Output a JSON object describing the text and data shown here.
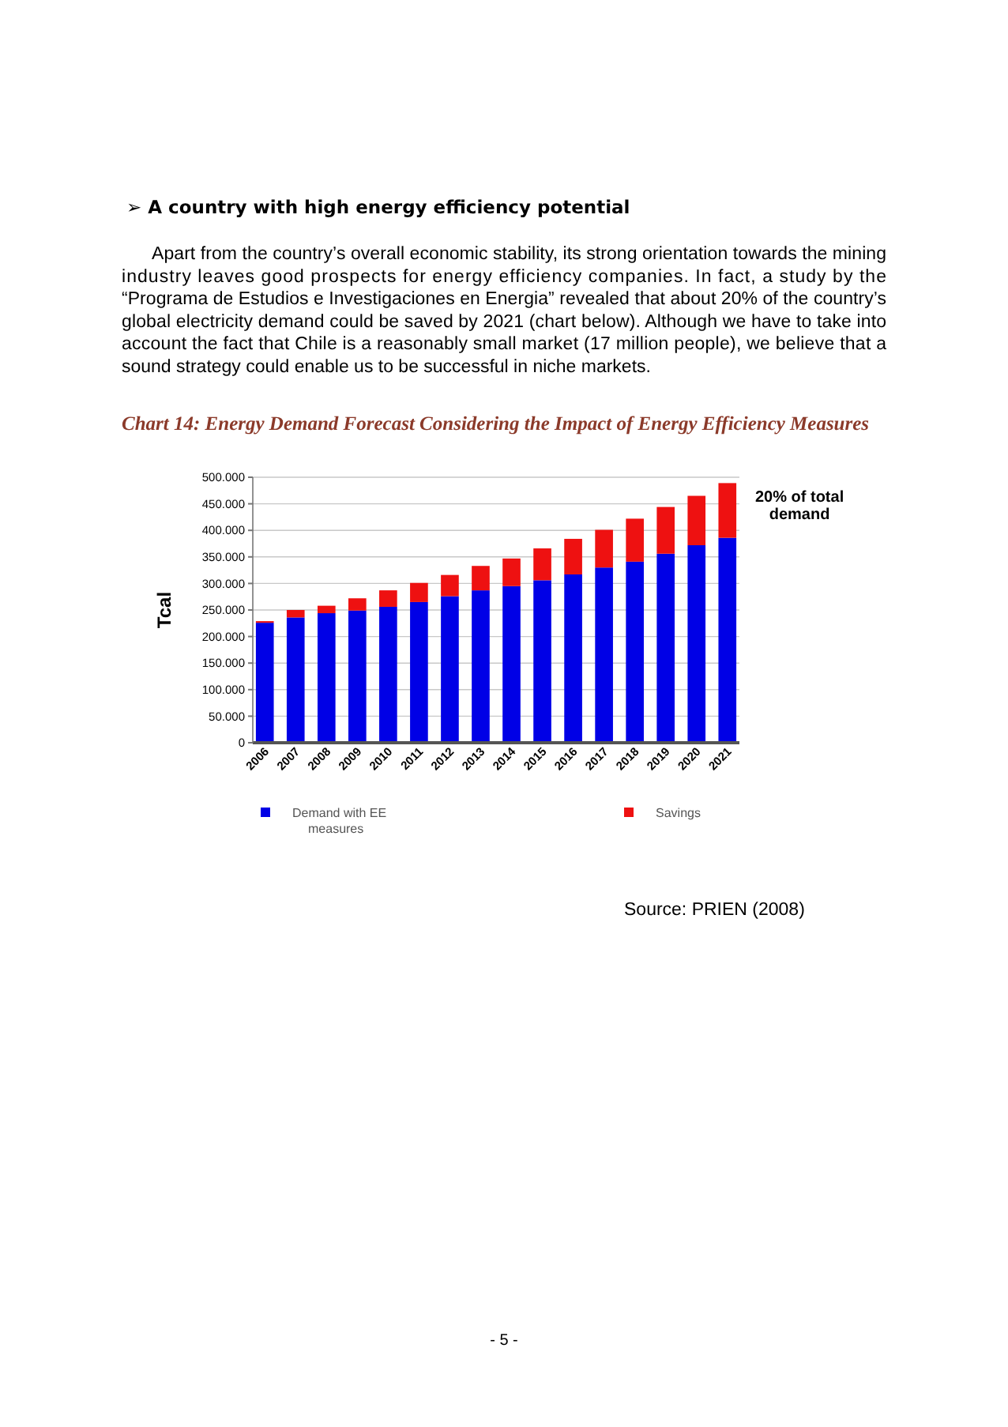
{
  "chart_data": {
    "type": "bar",
    "stacked": true,
    "title": "Chart 14: Energy Demand Forecast Considering the Impact of Energy Efficiency Measures",
    "ylabel": "Tcal",
    "categories": [
      "2006",
      "2007",
      "2008",
      "2009",
      "2010",
      "2011",
      "2012",
      "2013",
      "2014",
      "2015",
      "2016",
      "2017",
      "2018",
      "2019",
      "2020",
      "2021"
    ],
    "series": [
      {
        "name": "Demand with EE measures",
        "color": "#0000e6",
        "values": [
          226000,
          236000,
          244000,
          249000,
          256000,
          265000,
          276000,
          287000,
          295000,
          306000,
          317000,
          330000,
          341000,
          356000,
          372000,
          386000
        ]
      },
      {
        "name": "Savings",
        "color": "#ee1111",
        "values": [
          3000,
          14000,
          14000,
          23000,
          31000,
          36000,
          40000,
          46000,
          52000,
          60000,
          67000,
          71000,
          81000,
          88000,
          93000,
          103000
        ]
      }
    ],
    "ylim": [
      0,
      500000
    ],
    "yticks": [
      {
        "value": 0,
        "label": "0"
      },
      {
        "value": 50000,
        "label": "50.000"
      },
      {
        "value": 100000,
        "label": "100.000"
      },
      {
        "value": 150000,
        "label": "150.000"
      },
      {
        "value": 200000,
        "label": "200.000"
      },
      {
        "value": 250000,
        "label": "250.000"
      },
      {
        "value": 300000,
        "label": "300.000"
      },
      {
        "value": 350000,
        "label": "350.000"
      },
      {
        "value": 400000,
        "label": "400.000"
      },
      {
        "value": 450000,
        "label": "450.000"
      },
      {
        "value": 500000,
        "label": "500.000"
      }
    ],
    "grid": "y",
    "legend": "bottom",
    "annotations": [
      "➢ A country with high energy efficiency potential",
      "Apart from the country’s overall economic stability, its strong orientation towards the mining industry leaves good prospects for energy efficiency companies. In fact, a study by the “Programa de Estudios e Investigaciones en Energia” revealed that about 20% of the country’s global electricity demand could be saved by 2021 (chart below). Although we have to take into account the fact that Chile is a reasonably small market (17 million people), we believe that a sound strategy could enable us to be successful in niche markets.",
      "Source: PRIEN (2008)",
      "- 5 -",
      {
        "text": "20% of total demand",
        "x": "2021",
        "y": 489000
      }
    ]
  }
}
